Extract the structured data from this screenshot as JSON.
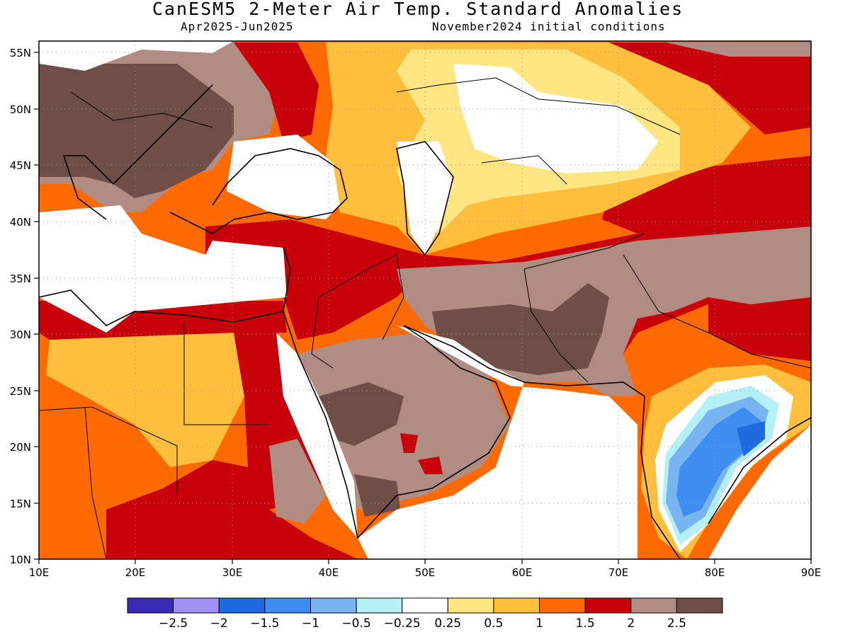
{
  "header": {
    "title": "CanESM5 2-Meter Air Temp. Standard Anomalies",
    "period": "Apr2025-Jun2025",
    "initial_conditions": "November2024 initial conditions"
  },
  "map": {
    "lon_range": [
      10,
      90
    ],
    "lat_range": [
      10,
      56
    ],
    "lon_ticks": [
      "10E",
      "20E",
      "30E",
      "40E",
      "50E",
      "60E",
      "70E",
      "80E",
      "90E"
    ],
    "lat_ticks": [
      "55N",
      "50N",
      "45N",
      "40N",
      "35N",
      "30N",
      "25N",
      "20N",
      "15N",
      "10N"
    ],
    "grid": "dotted"
  },
  "colorbar": {
    "colors": [
      "#3a2bb5",
      "#a090f5",
      "#1e6be0",
      "#3d8ef0",
      "#78b4f0",
      "#b4f0f5",
      "#ffffff",
      "#ffe682",
      "#ffbf3c",
      "#ff6a00",
      "#c8000a",
      "#b08c82",
      "#6e4e46"
    ],
    "labels": [
      "−2.5",
      "−2",
      "−1.5",
      "−1",
      "−0.5",
      "−0.25",
      "0.25",
      "0.5",
      "1",
      "1.5",
      "2",
      "2.5"
    ]
  }
}
